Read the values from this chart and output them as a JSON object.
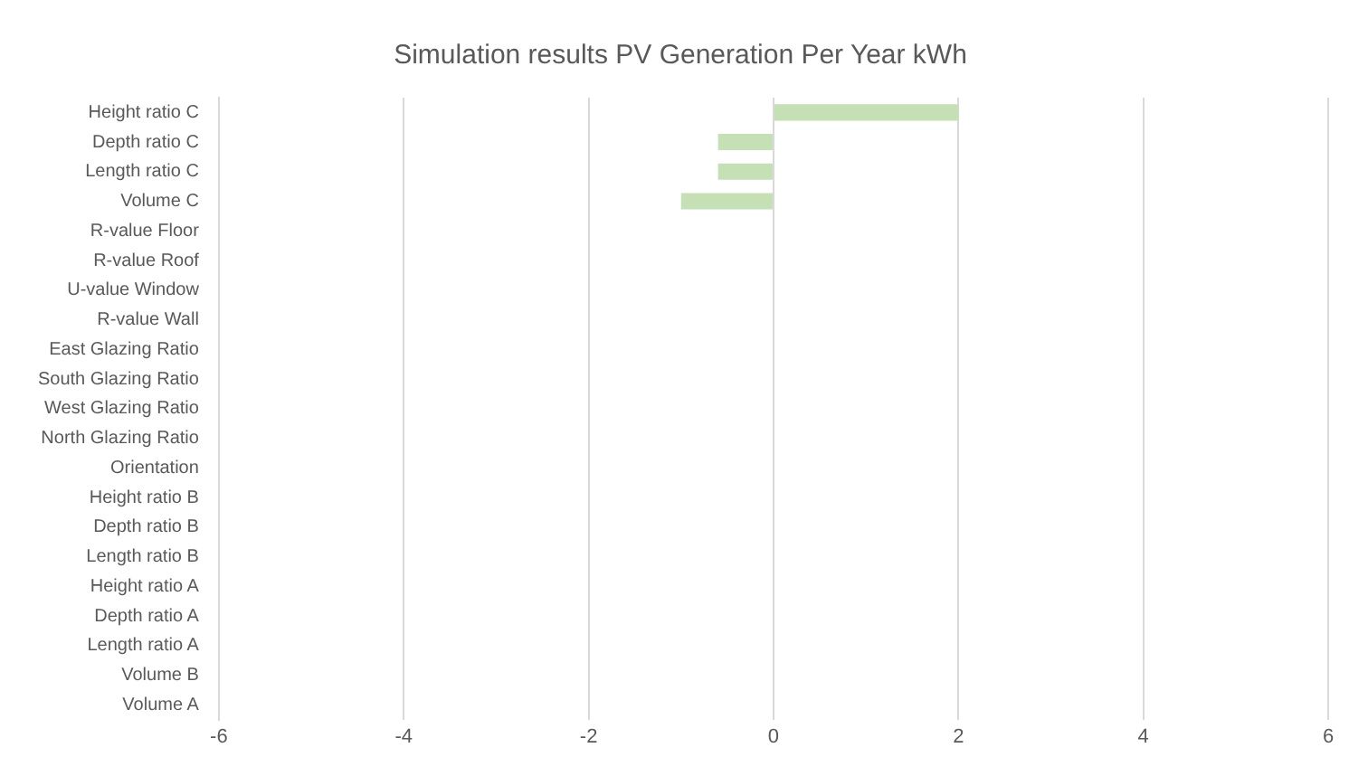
{
  "chart_data": {
    "type": "bar",
    "orientation": "horizontal",
    "title": "Simulation results PV Generation Per Year kWh",
    "categories": [
      "Height ratio C",
      "Depth ratio C",
      "Length ratio C",
      "Volume C",
      "R-value Floor",
      "R-value Roof",
      "U-value Window",
      "R-value Wall",
      "East Glazing Ratio",
      "South Glazing Ratio",
      "West Glazing Ratio",
      "North Glazing Ratio",
      "Orientation",
      "Height ratio B",
      "Depth ratio B",
      "Length ratio B",
      "Height ratio A",
      "Depth ratio A",
      "Length ratio A",
      "Volume B",
      "Volume A"
    ],
    "values": [
      2,
      -0.6,
      -0.6,
      -1,
      0,
      0,
      0,
      0,
      0,
      0,
      0,
      0,
      0,
      0,
      0,
      0,
      0,
      0,
      0,
      0,
      0
    ],
    "color": "#c5e0b4",
    "xlim": [
      -6,
      6
    ],
    "xticks": [
      -6,
      -4,
      -2,
      0,
      2,
      4,
      6
    ],
    "grid": "x",
    "legend": false
  }
}
